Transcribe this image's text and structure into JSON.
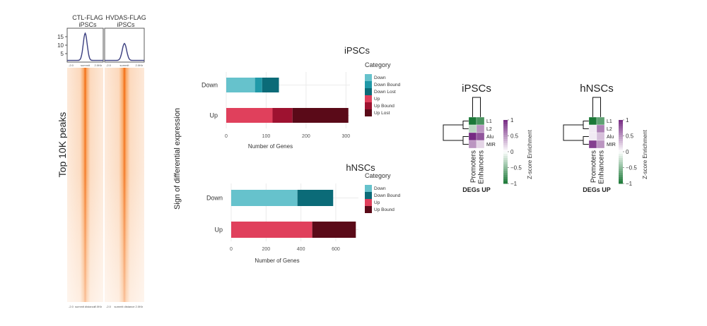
{
  "heatmap_panel": {
    "ylabel": "Top 10K peaks",
    "columns": [
      {
        "title_line1": "CTL-FLAG",
        "title_line2": "iPSCs",
        "profile_peak": 17
      },
      {
        "title_line1": "HVDAS-FLAG",
        "title_line2": "iPSCs",
        "profile_peak": 11
      }
    ],
    "profile_yticks": [
      "15",
      "10",
      "5"
    ],
    "profile_xticks": [
      "-2.0",
      "summit",
      "2.0Kb"
    ],
    "heat_xticks": [
      "-2.0",
      "summit distance",
      "2.0Kb"
    ]
  },
  "bar_shared_ylabel": "Sign of differential expression",
  "chart_data": [
    {
      "type": "bar",
      "orientation": "horizontal",
      "stacked": true,
      "title": "iPSCs",
      "xlabel": "Number of Genes",
      "xlim": [
        0,
        310
      ],
      "xticks": [
        0,
        100,
        200,
        300
      ],
      "categories": [
        "Down",
        "Up"
      ],
      "legend_title": "Category",
      "series": [
        {
          "name": "Down",
          "color": "#66c2cc",
          "values": [
            72,
            0
          ]
        },
        {
          "name": "Down Bound",
          "color": "#2099a8",
          "values": [
            18,
            0
          ]
        },
        {
          "name": "Down Lost",
          "color": "#0b6b78",
          "values": [
            42,
            0
          ]
        },
        {
          "name": "Up",
          "color": "#e0405c",
          "values": [
            0,
            116
          ]
        },
        {
          "name": "Up Bound",
          "color": "#9e1230",
          "values": [
            0,
            50
          ]
        },
        {
          "name": "Up Lost",
          "color": "#5a0a18",
          "values": [
            0,
            140
          ]
        }
      ]
    },
    {
      "type": "bar",
      "orientation": "horizontal",
      "stacked": true,
      "title": "hNSCs",
      "xlabel": "Number of Genes",
      "xlim": [
        0,
        730
      ],
      "xticks": [
        0,
        200,
        400,
        600
      ],
      "categories": [
        "Down",
        "Up"
      ],
      "legend_title": "Category",
      "series": [
        {
          "name": "Down",
          "color": "#66c2cc",
          "values": [
            380,
            0
          ]
        },
        {
          "name": "Down Bound",
          "color": "#0b6b78",
          "values": [
            205,
            0
          ]
        },
        {
          "name": "Up",
          "color": "#e0405c",
          "values": [
            0,
            465
          ]
        },
        {
          "name": "Up Bound",
          "color": "#5a0a18",
          "values": [
            0,
            250
          ]
        }
      ]
    },
    {
      "type": "heatmap",
      "title": "iPSCs",
      "xlabel": "DEGs UP",
      "columns": [
        "Promoters",
        "Enhancers"
      ],
      "rows": [
        "L1",
        "L2",
        "Alu",
        "MIR"
      ],
      "values": [
        [
          -1.0,
          -0.8
        ],
        [
          -0.3,
          0.5
        ],
        [
          1.0,
          0.8
        ],
        [
          0.5,
          0.2
        ]
      ],
      "colorbar_label": "Z-score Enrichment",
      "colorbar_ticks": [
        "1",
        "0.5",
        "0",
        "−0.5",
        "−1"
      ]
    },
    {
      "type": "heatmap",
      "title": "hNSCs",
      "xlabel": "DEGs UP",
      "columns": [
        "Promoters",
        "Enhancers"
      ],
      "rows": [
        "L1",
        "L2",
        "Alu",
        "MIR"
      ],
      "values": [
        [
          -1.0,
          -0.7
        ],
        [
          0.1,
          0.6
        ],
        [
          0.1,
          0.3
        ],
        [
          0.9,
          0.5
        ]
      ],
      "colorbar_label": "Z-score Enrichment",
      "colorbar_ticks": [
        "1",
        "0.5",
        "0",
        "−0.5",
        "−1"
      ]
    }
  ]
}
